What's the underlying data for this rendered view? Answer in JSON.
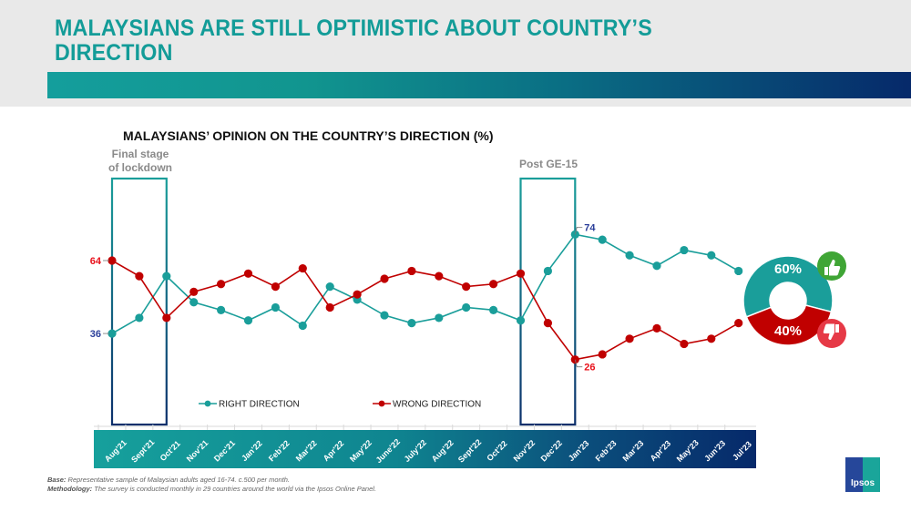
{
  "slide": {
    "title": "MALAYSIANS ARE STILL OPTIMISTIC ABOUT COUNTRY’S DIRECTION",
    "footer_base_label": "Base:",
    "footer_base_text": "Representative sample of Malaysian adults aged 16-74. c.500 per month.",
    "footer_method_label": "Methodology:",
    "footer_method_text": "The survey is conducted monthly in 29 countries around the world via the Ipsos Online Panel.",
    "logo_text": "Ipsos",
    "colors": {
      "accent": "#149e9c",
      "right": "#1a9e9a",
      "wrong": "#c00000",
      "navy": "#06296a",
      "annotation": "#8a8a8a"
    }
  },
  "chart_data": [
    {
      "type": "line",
      "title": "MALAYSIANS’ OPINION ON THE COUNTRY’S DIRECTION (%)",
      "xlabel": "",
      "ylabel": "",
      "ylim": [
        20,
        80
      ],
      "grid": false,
      "legend": "bottom",
      "categories": [
        "Aug'21",
        "Sept'21",
        "Oct'21",
        "Nov'21",
        "Dec'21",
        "Jan'22",
        "Feb'22",
        "Mar'22",
        "Apr'22",
        "May'22",
        "June'22",
        "July'22",
        "Aug'22",
        "Sept'22",
        "Oct'22",
        "Nov'22",
        "Dec'22",
        "Jan'23",
        "Feb'23",
        "Mar'23",
        "Apr'23",
        "May'23",
        "Jun'23",
        "Jul'23"
      ],
      "series": [
        {
          "name": "RIGHT DIRECTION",
          "color": "#1a9e9a",
          "values": [
            36,
            42,
            58,
            48,
            45,
            41,
            46,
            39,
            54,
            49,
            43,
            40,
            42,
            46,
            45,
            41,
            60,
            74,
            72,
            66,
            62,
            68,
            66,
            60
          ]
        },
        {
          "name": "WRONG DIRECTION",
          "color": "#c00000",
          "values": [
            64,
            58,
            42,
            52,
            55,
            59,
            54,
            61,
            46,
            51,
            57,
            60,
            58,
            54,
            55,
            59,
            40,
            26,
            28,
            34,
            38,
            32,
            34,
            40
          ]
        }
      ],
      "data_labels": [
        {
          "series": "RIGHT DIRECTION",
          "category": "Aug'21",
          "text": "36"
        },
        {
          "series": "WRONG DIRECTION",
          "category": "Aug'21",
          "text": "64"
        },
        {
          "series": "RIGHT DIRECTION",
          "category": "Jan'23",
          "text": "74"
        },
        {
          "series": "WRONG DIRECTION",
          "category": "Jan'23",
          "text": "26"
        }
      ],
      "annotations": [
        {
          "text_lines": [
            "Final stage",
            "of lockdown"
          ],
          "from": "Aug'21",
          "to": "Oct'21"
        },
        {
          "text_lines": [
            "Post GE-15"
          ],
          "from": "Nov'22",
          "to": "Jan'23"
        }
      ]
    },
    {
      "type": "pie",
      "title": "",
      "donut": true,
      "categories": [
        "Right direction",
        "Wrong direction"
      ],
      "values": [
        60,
        40
      ],
      "labels": [
        "60%",
        "40%"
      ],
      "colors": [
        "#1a9e9a",
        "#c00000"
      ],
      "icons": [
        "thumbs-up-icon",
        "thumbs-down-icon"
      ]
    }
  ]
}
